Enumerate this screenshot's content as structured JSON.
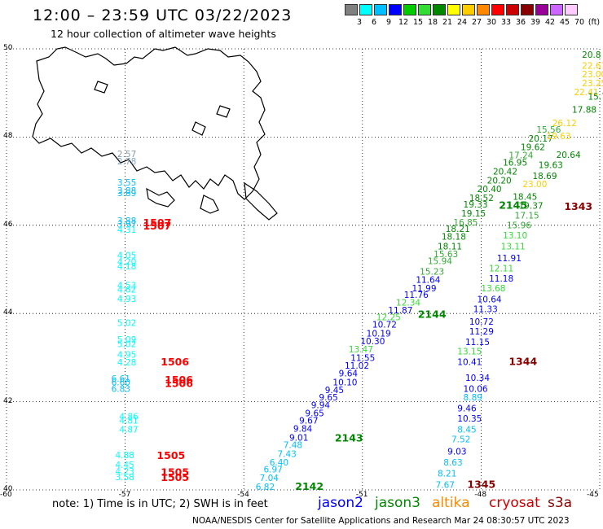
{
  "header": {
    "title": "12:00 – 23:59 UTC 03/22/2023",
    "subtitle": "12 hour collection of altimeter wave heights"
  },
  "color_scale": {
    "unit": "(ft)",
    "bins": [
      {
        "label": "3",
        "color": "#808080"
      },
      {
        "label": "6",
        "color": "#00ffff"
      },
      {
        "label": "9",
        "color": "#00bfff"
      },
      {
        "label": "12",
        "color": "#0000ff"
      },
      {
        "label": "15",
        "color": "#00cc00"
      },
      {
        "label": "18",
        "color": "#33dd33"
      },
      {
        "label": "21",
        "color": "#008800"
      },
      {
        "label": "24",
        "color": "#ffff00"
      },
      {
        "label": "27",
        "color": "#ffcc00"
      },
      {
        "label": "30",
        "color": "#ff8800"
      },
      {
        "label": "33",
        "color": "#ff0000"
      },
      {
        "label": "36",
        "color": "#cc0000"
      },
      {
        "label": "39",
        "color": "#880000"
      },
      {
        "label": "42",
        "color": "#990099"
      },
      {
        "label": "45",
        "color": "#cc66ff"
      },
      {
        "label": "70",
        "color": "#ffccff"
      }
    ]
  },
  "axes": {
    "lat_labels": [
      "50",
      "48",
      "46",
      "44",
      "42",
      "40"
    ],
    "lon_labels": [
      "-60",
      "-57",
      "-54",
      "-51",
      "-48",
      "-45"
    ],
    "lat_range": [
      40,
      50
    ],
    "lon_range": [
      -60,
      -45
    ]
  },
  "tracks": {
    "left": {
      "obs": [
        {
          "v": "2.57",
          "lat": 47.55,
          "lon": -57.2,
          "c": "#8899aa"
        },
        {
          "v": "2.78",
          "lat": 47.38,
          "lon": -57.2,
          "c": "#88aacc"
        },
        {
          "v": "3.55",
          "lat": 46.9,
          "lon": -57.2,
          "c": "#00bfff"
        },
        {
          "v": "3.88",
          "lat": 46.72,
          "lon": -57.2,
          "c": "#00bfff"
        },
        {
          "v": "3.89",
          "lat": 46.66,
          "lon": -57.2,
          "c": "#00bfff"
        },
        {
          "v": "3.88",
          "lat": 46.03,
          "lon": -57.2,
          "c": "#00bfff"
        },
        {
          "v": "3.97",
          "lat": 45.95,
          "lon": -57.2,
          "c": "#00bfff"
        },
        {
          "v": "4.31",
          "lat": 45.83,
          "lon": -57.2,
          "c": "#00ffff"
        },
        {
          "v": "4.05",
          "lat": 45.25,
          "lon": -57.2,
          "c": "#00ffff"
        },
        {
          "v": "4.20",
          "lat": 45.1,
          "lon": -57.2,
          "c": "#00ffff"
        },
        {
          "v": "4.18",
          "lat": 45.0,
          "lon": -57.2,
          "c": "#00ffff"
        },
        {
          "v": "4.53",
          "lat": 44.57,
          "lon": -57.2,
          "c": "#00ffff"
        },
        {
          "v": "4.62",
          "lat": 44.47,
          "lon": -57.2,
          "c": "#00ffff"
        },
        {
          "v": "4.93",
          "lat": 44.26,
          "lon": -57.2,
          "c": "#00ffff"
        },
        {
          "v": "5.02",
          "lat": 43.72,
          "lon": -57.2,
          "c": "#00ffff"
        },
        {
          "v": "5.09",
          "lat": 43.34,
          "lon": -57.2,
          "c": "#00ffff"
        },
        {
          "v": "5.02",
          "lat": 43.24,
          "lon": -57.2,
          "c": "#00ffff"
        },
        {
          "v": "4.95",
          "lat": 43.0,
          "lon": -57.2,
          "c": "#00ffff"
        },
        {
          "v": "4.28",
          "lat": 42.82,
          "lon": -57.2,
          "c": "#00ffff"
        },
        {
          "v": "6.61",
          "lat": 42.45,
          "lon": -57.35,
          "c": "#00bfff"
        },
        {
          "v": "6.60",
          "lat": 42.37,
          "lon": -57.35,
          "c": "#00bfff"
        },
        {
          "v": "6.83",
          "lat": 42.22,
          "lon": -57.35,
          "c": "#00bfff"
        },
        {
          "v": "4.86",
          "lat": 41.6,
          "lon": -57.15,
          "c": "#00ffff"
        },
        {
          "v": "4.81",
          "lat": 41.5,
          "lon": -57.15,
          "c": "#00ffff"
        },
        {
          "v": "4.87",
          "lat": 41.3,
          "lon": -57.15,
          "c": "#00ffff"
        },
        {
          "v": "4.88",
          "lat": 40.72,
          "lon": -57.25,
          "c": "#00ffff"
        },
        {
          "v": "4.45",
          "lat": 40.5,
          "lon": -57.25,
          "c": "#00ffff"
        },
        {
          "v": "4.23",
          "lat": 40.35,
          "lon": -57.25,
          "c": "#00ffff"
        },
        {
          "v": "3.58",
          "lat": 40.22,
          "lon": -57.25,
          "c": "#00ffff"
        }
      ],
      "orbits": [
        {
          "v": "1507",
          "lat": 45.98,
          "lon": -56.55,
          "c": "#ff0000"
        },
        {
          "v": "1507",
          "lat": 45.9,
          "lon": -56.55,
          "c": "#ff0000"
        },
        {
          "v": "1506",
          "lat": 42.82,
          "lon": -56.1,
          "c": "#ff0000"
        },
        {
          "v": "1506",
          "lat": 42.42,
          "lon": -56.0,
          "c": "#ff0000"
        },
        {
          "v": "1506",
          "lat": 42.33,
          "lon": -56.0,
          "c": "#ff0000"
        },
        {
          "v": "1505",
          "lat": 40.7,
          "lon": -56.2,
          "c": "#ff0000"
        },
        {
          "v": "1505",
          "lat": 40.32,
          "lon": -56.1,
          "c": "#ff0000"
        },
        {
          "v": "1505",
          "lat": 40.2,
          "lon": -56.1,
          "c": "#ff0000"
        }
      ]
    },
    "middle": {
      "obs": [
        {
          "v": "20.8",
          "lat": 49.8,
          "lon": -45.45,
          "c": "#008800"
        },
        {
          "v": "22.67",
          "lat": 49.55,
          "lon": -45.45,
          "c": "#ffcc00"
        },
        {
          "v": "23.00",
          "lat": 49.35,
          "lon": -45.45,
          "c": "#ffcc00"
        },
        {
          "v": "23.25",
          "lat": 49.15,
          "lon": -45.45,
          "c": "#ffcc00"
        },
        {
          "v": "22.41",
          "lat": 48.95,
          "lon": -45.65,
          "c": "#ffcc00"
        },
        {
          "v": "15.79",
          "lat": 48.85,
          "lon": -45.3,
          "c": "#008800"
        },
        {
          "v": "17.88",
          "lat": 48.55,
          "lon": -45.7,
          "c": "#008800"
        },
        {
          "v": "26.12",
          "lat": 48.25,
          "lon": -46.2,
          "c": "#ffcc00"
        },
        {
          "v": "15.56",
          "lat": 48.1,
          "lon": -46.6,
          "c": "#33aa33"
        },
        {
          "v": "20.17",
          "lat": 47.9,
          "lon": -46.8,
          "c": "#008800"
        },
        {
          "v": "19.62",
          "lat": 47.7,
          "lon": -47.0,
          "c": "#008800"
        },
        {
          "v": "17.24",
          "lat": 47.52,
          "lon": -47.3,
          "c": "#33aa33"
        },
        {
          "v": "16.95",
          "lat": 47.35,
          "lon": -47.45,
          "c": "#008800"
        },
        {
          "v": "20.42",
          "lat": 47.15,
          "lon": -47.7,
          "c": "#008800"
        },
        {
          "v": "20.20",
          "lat": 46.95,
          "lon": -47.85,
          "c": "#008800"
        },
        {
          "v": "20.40",
          "lat": 46.75,
          "lon": -48.1,
          "c": "#008800"
        },
        {
          "v": "18.52",
          "lat": 46.55,
          "lon": -48.3,
          "c": "#008800"
        },
        {
          "v": "19.33",
          "lat": 46.4,
          "lon": -48.45,
          "c": "#008800"
        },
        {
          "v": "19.15",
          "lat": 46.2,
          "lon": -48.5,
          "c": "#008800"
        },
        {
          "v": "16.85",
          "lat": 46.0,
          "lon": -48.7,
          "c": "#33aa33"
        },
        {
          "v": "18.21",
          "lat": 45.85,
          "lon": -48.9,
          "c": "#008800"
        },
        {
          "v": "18.18",
          "lat": 45.67,
          "lon": -49.0,
          "c": "#008800"
        },
        {
          "v": "18.11",
          "lat": 45.45,
          "lon": -49.1,
          "c": "#008800"
        },
        {
          "v": "15.63",
          "lat": 45.28,
          "lon": -49.2,
          "c": "#33aa33"
        },
        {
          "v": "15.94",
          "lat": 45.12,
          "lon": -49.35,
          "c": "#33aa33"
        },
        {
          "v": "15.23",
          "lat": 44.88,
          "lon": -49.55,
          "c": "#33aa33"
        },
        {
          "v": "11.64",
          "lat": 44.7,
          "lon": -49.65,
          "c": "#0000ff"
        },
        {
          "v": "11.99",
          "lat": 44.5,
          "lon": -49.75,
          "c": "#0000ff"
        },
        {
          "v": "11.76",
          "lat": 44.35,
          "lon": -49.95,
          "c": "#0000ff"
        },
        {
          "v": "12.34",
          "lat": 44.18,
          "lon": -50.15,
          "c": "#33dd33"
        },
        {
          "v": "11.87",
          "lat": 44.0,
          "lon": -50.35,
          "c": "#0000ff"
        },
        {
          "v": "12.25",
          "lat": 43.85,
          "lon": -50.65,
          "c": "#33dd33"
        },
        {
          "v": "10.72",
          "lat": 43.68,
          "lon": -50.75,
          "c": "#0000ff"
        },
        {
          "v": "10.19",
          "lat": 43.48,
          "lon": -50.9,
          "c": "#0000ff"
        },
        {
          "v": "10.30",
          "lat": 43.3,
          "lon": -51.05,
          "c": "#0000ff"
        },
        {
          "v": "13.47",
          "lat": 43.12,
          "lon": -51.35,
          "c": "#33dd33"
        },
        {
          "v": "11.55",
          "lat": 42.92,
          "lon": -51.3,
          "c": "#0000ff"
        },
        {
          "v": "11.02",
          "lat": 42.75,
          "lon": -51.45,
          "c": "#0000ff"
        },
        {
          "v": "9.64",
          "lat": 42.57,
          "lon": -51.6,
          "c": "#0000ff"
        },
        {
          "v": "10.10",
          "lat": 42.37,
          "lon": -51.75,
          "c": "#0000ff"
        },
        {
          "v": "9.45",
          "lat": 42.2,
          "lon": -51.95,
          "c": "#0000ff"
        },
        {
          "v": "9.65",
          "lat": 42.03,
          "lon": -52.1,
          "c": "#0000ff"
        },
        {
          "v": "9.94",
          "lat": 41.85,
          "lon": -52.3,
          "c": "#0000ff"
        },
        {
          "v": "9.65",
          "lat": 41.67,
          "lon": -52.45,
          "c": "#0000ff"
        },
        {
          "v": "9.67",
          "lat": 41.5,
          "lon": -52.6,
          "c": "#0000ff"
        },
        {
          "v": "9.84",
          "lat": 41.32,
          "lon": -52.75,
          "c": "#0000ff"
        },
        {
          "v": "9.01",
          "lat": 41.12,
          "lon": -52.85,
          "c": "#0000ff"
        },
        {
          "v": "7.48",
          "lat": 40.95,
          "lon": -53.0,
          "c": "#00bfff"
        },
        {
          "v": "7.43",
          "lat": 40.75,
          "lon": -53.15,
          "c": "#00bfff"
        },
        {
          "v": "6.40",
          "lat": 40.55,
          "lon": -53.35,
          "c": "#00bfff"
        },
        {
          "v": "6.97",
          "lat": 40.4,
          "lon": -53.5,
          "c": "#00bfff"
        },
        {
          "v": "7.04",
          "lat": 40.2,
          "lon": -53.6,
          "c": "#00bfff"
        },
        {
          "v": "6.82",
          "lat": 40.0,
          "lon": -53.7,
          "c": "#00bfff"
        }
      ],
      "orbits": [
        {
          "v": "2145",
          "lat": 46.37,
          "lon": -47.55,
          "c": "#008800"
        },
        {
          "v": "2144",
          "lat": 43.9,
          "lon": -49.6,
          "c": "#008800"
        },
        {
          "v": "2143",
          "lat": 41.1,
          "lon": -51.7,
          "c": "#008800"
        },
        {
          "v": "2142",
          "lat": 40.0,
          "lon": -52.7,
          "c": "#008800"
        }
      ]
    },
    "right": {
      "obs": [
        {
          "v": "19.63",
          "lat": 47.95,
          "lon": -46.35,
          "c": "#ffcc00"
        },
        {
          "v": "20.64",
          "lat": 47.53,
          "lon": -46.1,
          "c": "#008800"
        },
        {
          "v": "19.63",
          "lat": 47.3,
          "lon": -46.55,
          "c": "#008800"
        },
        {
          "v": "18.69",
          "lat": 47.05,
          "lon": -46.7,
          "c": "#008800"
        },
        {
          "v": "23.00",
          "lat": 46.86,
          "lon": -46.95,
          "c": "#ffcc00"
        },
        {
          "v": "18.45",
          "lat": 46.58,
          "lon": -47.2,
          "c": "#008800"
        },
        {
          "v": "19.37",
          "lat": 46.37,
          "lon": -47.05,
          "c": "#008800"
        },
        {
          "v": "17.15",
          "lat": 46.15,
          "lon": -47.15,
          "c": "#33aa33"
        },
        {
          "v": "15.96",
          "lat": 45.93,
          "lon": -47.35,
          "c": "#33aa33"
        },
        {
          "v": "13.10",
          "lat": 45.7,
          "lon": -47.45,
          "c": "#33dd33"
        },
        {
          "v": "13.11",
          "lat": 45.45,
          "lon": -47.5,
          "c": "#33dd33"
        },
        {
          "v": "11.91",
          "lat": 45.18,
          "lon": -47.6,
          "c": "#0000ff"
        },
        {
          "v": "12.11",
          "lat": 44.95,
          "lon": -47.8,
          "c": "#33dd33"
        },
        {
          "v": "11.18",
          "lat": 44.72,
          "lon": -47.8,
          "c": "#0000ff"
        },
        {
          "v": "13.68",
          "lat": 44.5,
          "lon": -48.0,
          "c": "#33dd33"
        },
        {
          "v": "10.64",
          "lat": 44.25,
          "lon": -48.1,
          "c": "#0000ff"
        },
        {
          "v": "11.33",
          "lat": 44.03,
          "lon": -48.2,
          "c": "#0000ff"
        },
        {
          "v": "10.72",
          "lat": 43.75,
          "lon": -48.3,
          "c": "#0000ff"
        },
        {
          "v": "11.29",
          "lat": 43.52,
          "lon": -48.3,
          "c": "#0000ff"
        },
        {
          "v": "11.15",
          "lat": 43.28,
          "lon": -48.4,
          "c": "#0000ff"
        },
        {
          "v": "13.15",
          "lat": 43.07,
          "lon": -48.6,
          "c": "#33dd33"
        },
        {
          "v": "10.41",
          "lat": 42.83,
          "lon": -48.6,
          "c": "#0000ff"
        },
        {
          "v": "10.34",
          "lat": 42.47,
          "lon": -48.4,
          "c": "#0000ff"
        },
        {
          "v": "10.06",
          "lat": 42.22,
          "lon": -48.45,
          "c": "#0000ff"
        },
        {
          "v": "8.89",
          "lat": 42.03,
          "lon": -48.45,
          "c": "#00bfff"
        },
        {
          "v": "9.46",
          "lat": 41.78,
          "lon": -48.6,
          "c": "#0000ff"
        },
        {
          "v": "10.35",
          "lat": 41.55,
          "lon": -48.6,
          "c": "#0000ff"
        },
        {
          "v": "8.45",
          "lat": 41.3,
          "lon": -48.6,
          "c": "#00bfff"
        },
        {
          "v": "7.52",
          "lat": 41.08,
          "lon": -48.75,
          "c": "#00bfff"
        },
        {
          "v": "9.03",
          "lat": 40.8,
          "lon": -48.85,
          "c": "#0000ff"
        },
        {
          "v": "8.63",
          "lat": 40.55,
          "lon": -48.95,
          "c": "#00bfff"
        },
        {
          "v": "8.21",
          "lat": 40.3,
          "lon": -49.1,
          "c": "#00bfff"
        },
        {
          "v": "7.67",
          "lat": 40.05,
          "lon": -49.15,
          "c": "#00bfff"
        }
      ],
      "orbits": [
        {
          "v": "1343",
          "lat": 46.35,
          "lon": -45.9,
          "c": "#880000"
        },
        {
          "v": "1344",
          "lat": 42.83,
          "lon": -47.3,
          "c": "#880000"
        },
        {
          "v": "1345",
          "lat": 40.05,
          "lon": -48.35,
          "c": "#880000"
        }
      ]
    }
  },
  "note": "note: 1) Time is in UTC; 2) SWH is in feet",
  "satellites": [
    {
      "name": "jason2",
      "color": "#0000ff"
    },
    {
      "name": "jason3",
      "color": "#008800"
    },
    {
      "name": "altika",
      "color": "#ff8800"
    },
    {
      "name": "cryosat",
      "color": "#cc0000"
    },
    {
      "name": "s3a",
      "color": "#880000"
    }
  ],
  "footer": "NOAA/NESDIS Center for Satellite Applications and Research    Mar 24 08:30:57 UTC 2023"
}
